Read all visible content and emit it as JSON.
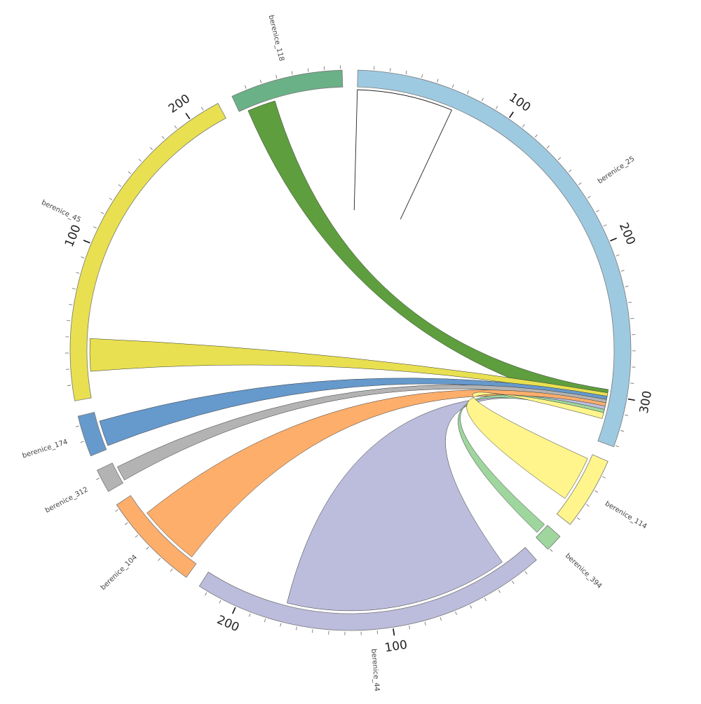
{
  "chart_data": {
    "type": "chord",
    "segments": [
      {
        "name": "berenice_25",
        "length": 331,
        "color": "#9ecae1",
        "tick_labels": [
          "100",
          "200",
          "300"
        ]
      },
      {
        "name": "berenice_114",
        "length": 46,
        "color": "#fff58c",
        "tick_labels": []
      },
      {
        "name": "berenice_394",
        "length": 11,
        "color": "#9ed69e",
        "tick_labels": []
      },
      {
        "name": "berenice_44",
        "length": 226,
        "color": "#bcbddc",
        "tick_labels": [
          "100",
          "200"
        ]
      },
      {
        "name": "berenice_104",
        "length": 63,
        "color": "#fdae6b",
        "tick_labels": []
      },
      {
        "name": "berenice_312",
        "length": 15,
        "color": "#b3b3b3",
        "tick_labels": []
      },
      {
        "name": "berenice_174",
        "length": 26,
        "color": "#6699cc",
        "tick_labels": []
      },
      {
        "name": "berenice_45",
        "length": 220,
        "color": "#e8e050",
        "tick_labels": [
          "100",
          "200"
        ]
      },
      {
        "name": "berenice_118",
        "length": 71,
        "color": "#6ab187",
        "tick_labels": []
      }
    ],
    "links": [
      {
        "from": "berenice_118",
        "to": "berenice_25",
        "color": "#5e9e3e"
      },
      {
        "from": "berenice_45",
        "to": "berenice_25",
        "color": "#e8e050"
      },
      {
        "from": "berenice_174",
        "to": "berenice_25",
        "color": "#6699cc"
      },
      {
        "from": "berenice_312",
        "to": "berenice_25",
        "color": "#b3b3b3"
      },
      {
        "from": "berenice_104",
        "to": "berenice_25",
        "color": "#fdae6b"
      },
      {
        "from": "berenice_44",
        "to": "berenice_25",
        "color": "#bcbddc"
      },
      {
        "from": "berenice_394",
        "to": "berenice_25",
        "color": "#9ed69e"
      },
      {
        "from": "berenice_114",
        "to": "berenice_25",
        "color": "#fff58c"
      },
      {
        "from": "berenice_25",
        "to": "berenice_25",
        "color": "#ffffff"
      }
    ]
  }
}
